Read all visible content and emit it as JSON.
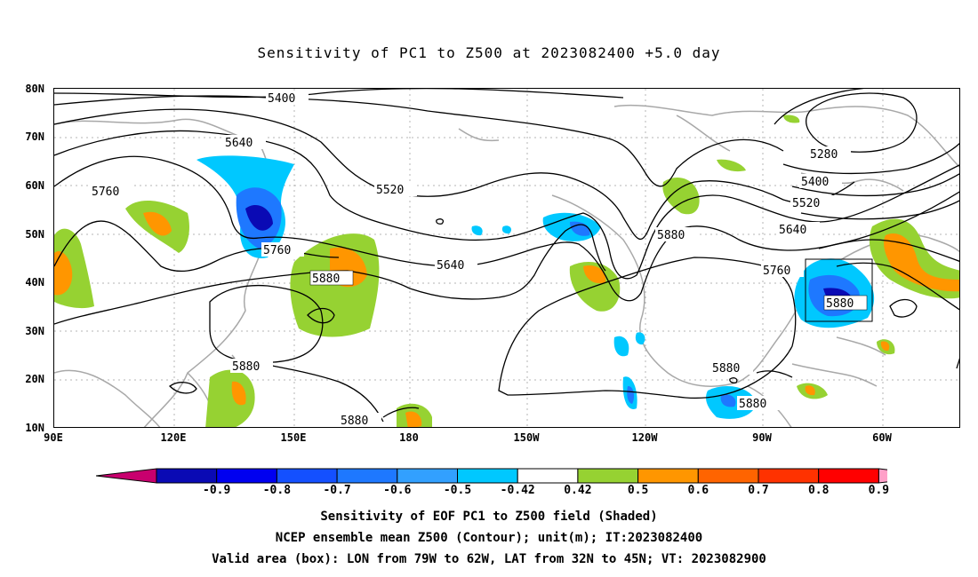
{
  "title": "Sensitivity of PC1 to Z500 at 2023082400 +5.0 day",
  "lat_labels": [
    "80N",
    "70N",
    "60N",
    "50N",
    "40N",
    "30N",
    "20N",
    "10N"
  ],
  "lon_labels": [
    "90E",
    "120E",
    "150E",
    "180",
    "150W",
    "120W",
    "90W",
    "60W"
  ],
  "contour_labels": [
    "5400",
    "5640",
    "5760",
    "5520",
    "5280",
    "5400",
    "5520",
    "5640",
    "5880",
    "5760",
    "5640",
    "5760",
    "5880",
    "5880",
    "5880",
    "5880",
    "5880",
    "5880"
  ],
  "colorbar": {
    "labels": [
      "-0.9",
      "-0.8",
      "-0.7",
      "-0.6",
      "-0.5",
      "-0.42",
      "0.42",
      "0.5",
      "0.6",
      "0.7",
      "0.8",
      "0.9"
    ],
    "colors": [
      "#0a0ab4",
      "#0000f0",
      "#1450ff",
      "#1e78ff",
      "#32a0ff",
      "#00c8ff",
      "#ffffff",
      "#96d232",
      "#ff9600",
      "#ff6400",
      "#ff3200",
      "#ff0000"
    ],
    "low_color": "#c8006e",
    "high_color": "#ffa0c8"
  },
  "captions": {
    "line1": "Sensitivity of EOF PC1 to Z500 field (Shaded)",
    "line2": "NCEP ensemble mean Z500 (Contour); unit(m); IT:2023082400",
    "line3": "Valid area (box): LON from 79W to 62W, LAT from 32N to 45N; VT: 2023082900"
  }
}
